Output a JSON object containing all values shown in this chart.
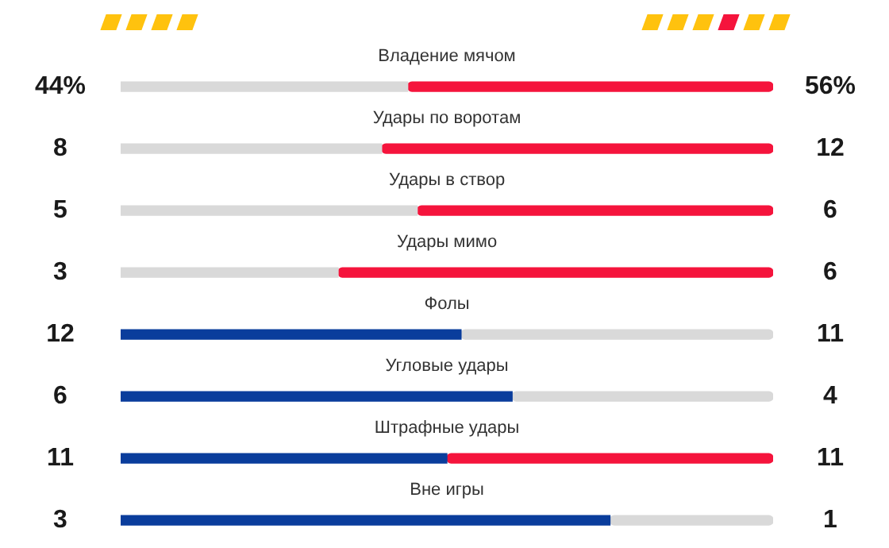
{
  "chart_data": [
    {
      "type": "bar",
      "orientation": "horizontal",
      "stacked": true,
      "tick_labels": false,
      "title": "Владение мячом",
      "categories": [
        null
      ],
      "series": [
        {
          "color": "#d9d9d9",
          "values": [
            44
          ],
          "value_labels": [
            "44%"
          ]
        },
        {
          "color": "#f5143c",
          "values": [
            56
          ],
          "value_labels": [
            "56%"
          ]
        }
      ]
    },
    {
      "type": "bar",
      "orientation": "horizontal",
      "stacked": true,
      "tick_labels": false,
      "title": "Удары по воротам",
      "categories": [
        null
      ],
      "series": [
        {
          "color": "#d9d9d9",
          "values": [
            8
          ],
          "value_labels": [
            "8"
          ]
        },
        {
          "color": "#f5143c",
          "values": [
            12
          ],
          "value_labels": [
            "12"
          ]
        }
      ]
    },
    {
      "type": "bar",
      "orientation": "horizontal",
      "stacked": true,
      "tick_labels": false,
      "title": "Удары в створ",
      "categories": [
        null
      ],
      "series": [
        {
          "color": "#d9d9d9",
          "values": [
            5
          ],
          "value_labels": [
            "5"
          ]
        },
        {
          "color": "#f5143c",
          "values": [
            6
          ],
          "value_labels": [
            "6"
          ]
        }
      ]
    },
    {
      "type": "bar",
      "orientation": "horizontal",
      "stacked": true,
      "tick_labels": false,
      "title": "Удары мимо",
      "categories": [
        null
      ],
      "series": [
        {
          "color": "#d9d9d9",
          "values": [
            3
          ],
          "value_labels": [
            "3"
          ]
        },
        {
          "color": "#f5143c",
          "values": [
            6
          ],
          "value_labels": [
            "6"
          ]
        }
      ]
    },
    {
      "type": "bar",
      "orientation": "horizontal",
      "stacked": true,
      "tick_labels": false,
      "title": "Фолы",
      "categories": [
        null
      ],
      "series": [
        {
          "color": "#0a3d9c",
          "values": [
            12
          ],
          "value_labels": [
            "12"
          ]
        },
        {
          "color": "#d9d9d9",
          "values": [
            11
          ],
          "value_labels": [
            "11"
          ]
        }
      ]
    },
    {
      "type": "bar",
      "orientation": "horizontal",
      "stacked": true,
      "tick_labels": false,
      "title": "Угловые удары",
      "categories": [
        null
      ],
      "series": [
        {
          "color": "#0a3d9c",
          "values": [
            6
          ],
          "value_labels": [
            "6"
          ]
        },
        {
          "color": "#d9d9d9",
          "values": [
            4
          ],
          "value_labels": [
            "4"
          ]
        }
      ]
    },
    {
      "type": "bar",
      "orientation": "horizontal",
      "stacked": true,
      "tick_labels": false,
      "title": "Штрафные удары",
      "categories": [
        null
      ],
      "series": [
        {
          "color": "#0a3d9c",
          "values": [
            11
          ],
          "value_labels": [
            "11"
          ]
        },
        {
          "color": "#f5143c",
          "values": [
            11
          ],
          "value_labels": [
            "11"
          ]
        }
      ]
    },
    {
      "type": "bar",
      "orientation": "horizontal",
      "stacked": true,
      "tick_labels": false,
      "title": "Вне игры",
      "categories": [
        null
      ],
      "series": [
        {
          "color": "#0a3d9c",
          "values": [
            3
          ],
          "value_labels": [
            "3"
          ]
        },
        {
          "color": "#d9d9d9",
          "values": [
            1
          ],
          "value_labels": [
            "1"
          ]
        }
      ]
    }
  ]
}
